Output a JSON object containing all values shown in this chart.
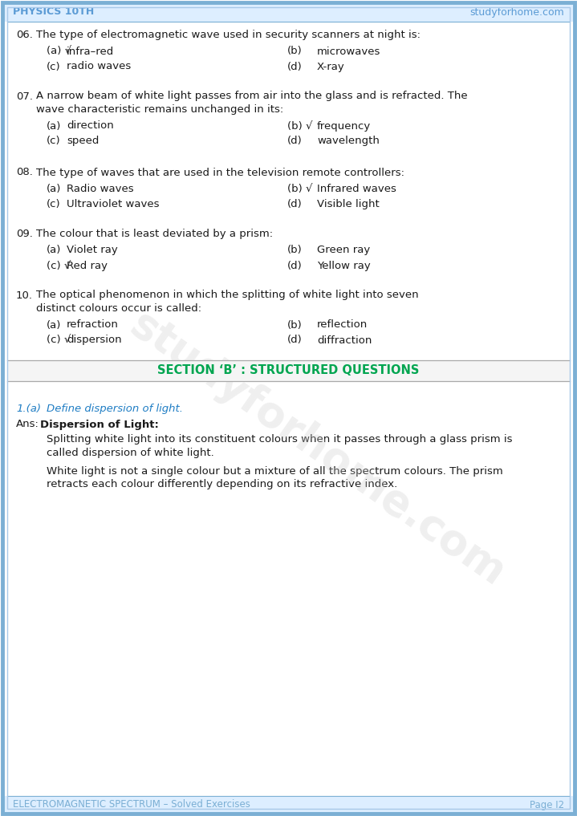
{
  "page_bg": "#ffffff",
  "border_outer_color": "#7bafd4",
  "border_inner_color": "#a8c8e8",
  "header_left": "PHYSICS 10TH",
  "header_right": "studyforhome.com",
  "header_color": "#5b9bd5",
  "header_bg": "#ddeeff",
  "footer_left": "ELECTROMAGNETIC SPECTRUM – Solved Exercises",
  "footer_right": "Page I2",
  "footer_color": "#7bafd4",
  "footer_bg": "#ddeeff",
  "section_b_text": "SECTION ‘B’ : STRUCTURED QUESTIONS",
  "section_b_color": "#00a550",
  "text_color": "#1a1a1a",
  "questions": [
    {
      "num": "06.",
      "text": "The type of electromagnetic wave used in security scanners at night is:",
      "multiline": false,
      "options": [
        {
          "label": "(a)",
          "check": true,
          "text": "infra–red"
        },
        {
          "label": "(b)",
          "check": false,
          "text": "microwaves"
        },
        {
          "label": "(c)",
          "check": false,
          "text": "radio waves"
        },
        {
          "label": "(d)",
          "check": false,
          "text": "X-ray"
        }
      ]
    },
    {
      "num": "07.",
      "text": "A narrow beam of white light passes from air into the glass and is refracted. The wave characteristic remains unchanged in its:",
      "multiline": true,
      "options": [
        {
          "label": "(a)",
          "check": false,
          "text": "direction"
        },
        {
          "label": "(b)",
          "check": true,
          "text": "frequency"
        },
        {
          "label": "(c)",
          "check": false,
          "text": "speed"
        },
        {
          "label": "(d)",
          "check": false,
          "text": "wavelength"
        }
      ]
    },
    {
      "num": "08.",
      "text": "The type of waves that are used in the television remote controllers:",
      "multiline": false,
      "options": [
        {
          "label": "(a)",
          "check": false,
          "text": "Radio waves"
        },
        {
          "label": "(b)",
          "check": true,
          "text": "Infrared waves"
        },
        {
          "label": "(c)",
          "check": false,
          "text": "Ultraviolet waves"
        },
        {
          "label": "(d)",
          "check": false,
          "text": "Visible light"
        }
      ]
    },
    {
      "num": "09.",
      "text": "The colour that is least deviated by a prism:",
      "multiline": false,
      "options": [
        {
          "label": "(a)",
          "check": false,
          "text": "Violet ray"
        },
        {
          "label": "(b)",
          "check": false,
          "text": "Green ray"
        },
        {
          "label": "(c)",
          "check": true,
          "text": "Red ray"
        },
        {
          "label": "(d)",
          "check": false,
          "text": "Yellow ray"
        }
      ]
    },
    {
      "num": "10.",
      "text": "The optical phenomenon in which the splitting of white light into seven distinct colours occur is called:",
      "multiline": true,
      "options": [
        {
          "label": "(a)",
          "check": false,
          "text": "refraction"
        },
        {
          "label": "(b)",
          "check": false,
          "text": "reflection"
        },
        {
          "label": "(c)",
          "check": true,
          "text": "dispersion"
        },
        {
          "label": "(d)",
          "check": false,
          "text": "diffraction"
        }
      ]
    }
  ],
  "sq_num": "1.(a)",
  "sq_text": "Define dispersion of light.",
  "sq_color": "#1f7dc4",
  "ans_label": "Ans:",
  "ans_bold": "Dispersion of Light:",
  "ans_body1_line1": "Splitting white light into its constituent colours when it passes through a glass prism is",
  "ans_body1_line2": "called dispersion of white light.",
  "ans_body2_line1": "White light is not a single colour but a mixture of all the spectrum colours. The prism",
  "ans_body2_line2": "retracts each colour differently depending on its refractive index.",
  "watermark": "studyforhome.com",
  "wm_color": "#cccccc",
  "wm_alpha": 0.3
}
